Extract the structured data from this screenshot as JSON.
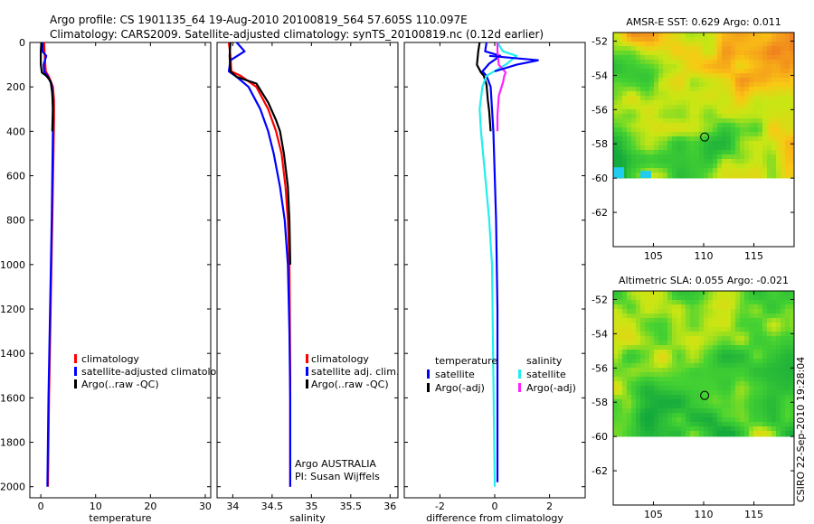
{
  "title": {
    "line1": "Argo profile: CS 1901135_64 19-Aug-2010 20100819_564 57.605S 110.097E",
    "line2": "Climatology: CARS2009. Satellite-adjusted climatology: synTS_20100819.nc (0.12d earlier)"
  },
  "stamp": "CSIRO 22-Sep-2010 19:28:04",
  "colors": {
    "red": "#ff0000",
    "blue": "#0000ff",
    "black": "#000000",
    "cyan": "#22eeee",
    "magenta": "#ff22ff"
  },
  "chart_data": [
    {
      "id": "temperature",
      "type": "line",
      "xlabel": "temperature",
      "xlim": [
        -2,
        31
      ],
      "xticks": [
        0,
        10,
        20,
        30
      ],
      "ylim": [
        0,
        2050
      ],
      "yticks": [
        0,
        200,
        400,
        600,
        800,
        1000,
        1200,
        1400,
        1600,
        1800,
        2000
      ],
      "legend": [
        "climatology",
        "satellite-adjusted climatology",
        "Argo(..raw -QC)"
      ],
      "series": [
        {
          "name": "climatology",
          "color": "red",
          "points": [
            [
              0.6,
              0
            ],
            [
              0.7,
              60
            ],
            [
              0.9,
              130
            ],
            [
              1.5,
              155
            ],
            [
              2.2,
              200
            ],
            [
              2.4,
              260
            ],
            [
              2.4,
              350
            ],
            [
              2.3,
              500
            ],
            [
              2.1,
              800
            ],
            [
              1.8,
              1200
            ],
            [
              1.5,
              1600
            ],
            [
              1.3,
              2000
            ]
          ]
        },
        {
          "name": "satellite-adjusted climatology",
          "color": "blue",
          "points": [
            [
              0.3,
              0
            ],
            [
              0.3,
              40
            ],
            [
              1.0,
              60
            ],
            [
              0.5,
              100
            ],
            [
              0.6,
              130
            ],
            [
              1.2,
              150
            ],
            [
              2.0,
              190
            ],
            [
              2.2,
              260
            ],
            [
              2.2,
              400
            ],
            [
              2.0,
              800
            ],
            [
              1.7,
              1200
            ],
            [
              1.4,
              1600
            ],
            [
              1.2,
              2000
            ]
          ]
        },
        {
          "name": "Argo(..raw -QC)",
          "color": "black",
          "points": [
            [
              0.1,
              0
            ],
            [
              0.0,
              40
            ],
            [
              0.0,
              100
            ],
            [
              0.2,
              135
            ],
            [
              1.0,
              150
            ],
            [
              1.8,
              175
            ],
            [
              2.1,
              230
            ],
            [
              2.2,
              300
            ],
            [
              2.1,
              400
            ]
          ]
        }
      ]
    },
    {
      "id": "salinity",
      "type": "line",
      "xlabel": "salinity",
      "xlim": [
        33.8,
        36.1
      ],
      "xticks": [
        34,
        34.5,
        35,
        35.5,
        36
      ],
      "ylim": [
        0,
        2050
      ],
      "legend": [
        "climatology",
        "satellite adj. clim.",
        "Argo(..raw -QC)"
      ],
      "annotations": [
        "Argo AUSTRALIA",
        "PI: Susan Wijffels"
      ],
      "series": [
        {
          "name": "climatology",
          "color": "red",
          "points": [
            [
              33.95,
              0
            ],
            [
              33.97,
              60
            ],
            [
              33.98,
              130
            ],
            [
              34.1,
              150
            ],
            [
              34.3,
              200
            ],
            [
              34.45,
              300
            ],
            [
              34.55,
              400
            ],
            [
              34.62,
              500
            ],
            [
              34.67,
              650
            ],
            [
              34.7,
              800
            ],
            [
              34.72,
              1000
            ],
            [
              34.73,
              1500
            ],
            [
              34.73,
              2000
            ]
          ]
        },
        {
          "name": "satellite adj. clim.",
          "color": "blue",
          "points": [
            [
              34.05,
              0
            ],
            [
              34.15,
              40
            ],
            [
              33.97,
              80
            ],
            [
              33.95,
              130
            ],
            [
              34.05,
              155
            ],
            [
              34.2,
              200
            ],
            [
              34.35,
              300
            ],
            [
              34.45,
              400
            ],
            [
              34.52,
              500
            ],
            [
              34.6,
              650
            ],
            [
              34.66,
              800
            ],
            [
              34.7,
              1000
            ],
            [
              34.72,
              1300
            ],
            [
              34.73,
              1600
            ],
            [
              34.73,
              2000
            ]
          ]
        },
        {
          "name": "Argo(..raw -QC)",
          "color": "black",
          "points": [
            [
              33.97,
              0
            ],
            [
              33.96,
              60
            ],
            [
              33.97,
              130
            ],
            [
              34.05,
              155
            ],
            [
              34.3,
              185
            ],
            [
              34.45,
              270
            ],
            [
              34.55,
              350
            ],
            [
              34.6,
              400
            ],
            [
              34.65,
              500
            ],
            [
              34.7,
              650
            ],
            [
              34.72,
              800
            ],
            [
              34.73,
              1000
            ]
          ]
        }
      ]
    },
    {
      "id": "difference",
      "type": "line",
      "xlabel": "difference from climatology",
      "xlim": [
        -3.3,
        3.3
      ],
      "xticks": [
        -2,
        0,
        2
      ],
      "ylim": [
        0,
        2050
      ],
      "legend_groups": [
        {
          "title": "temperature",
          "items": [
            "satellite",
            "Argo(-adj)"
          ]
        },
        {
          "title": "salinity",
          "items": [
            "satellite",
            "Argo(-adj)"
          ]
        }
      ],
      "series": [
        {
          "name": "temperature satellite",
          "color": "blue",
          "points": [
            [
              -0.3,
              0
            ],
            [
              -0.35,
              40
            ],
            [
              0.2,
              60
            ],
            [
              -0.2,
              95
            ],
            [
              -0.45,
              130
            ],
            [
              -0.3,
              150
            ],
            [
              -0.15,
              200
            ],
            [
              -0.1,
              300
            ],
            [
              -0.05,
              400
            ],
            [
              0.05,
              800
            ],
            [
              0.1,
              1200
            ],
            [
              0.1,
              1600
            ],
            [
              0.1,
              1980
            ]
          ]
        },
        {
          "name": "temperature Argo(-adj)",
          "color": "black",
          "points": [
            [
              -0.55,
              0
            ],
            [
              -0.6,
              40
            ],
            [
              -0.65,
              100
            ],
            [
              -0.5,
              135
            ],
            [
              -0.4,
              150
            ],
            [
              -0.3,
              190
            ],
            [
              -0.25,
              260
            ],
            [
              -0.2,
              310
            ],
            [
              -0.15,
              400
            ]
          ]
        },
        {
          "name": "salinity satellite",
          "color": "cyan",
          "points": [
            [
              0.1,
              0
            ],
            [
              0.3,
              40
            ],
            [
              0.8,
              60
            ],
            [
              0.4,
              100
            ],
            [
              -0.3,
              150
            ],
            [
              -0.45,
              200
            ],
            [
              -0.55,
              300
            ],
            [
              -0.5,
              400
            ],
            [
              -0.35,
              600
            ],
            [
              -0.2,
              800
            ],
            [
              -0.1,
              1000
            ],
            [
              -0.05,
              1500
            ],
            [
              0.0,
              2000
            ]
          ]
        },
        {
          "name": "salinity Argo(-adj)",
          "color": "magenta",
          "points": [
            [
              0.1,
              0
            ],
            [
              0.1,
              40
            ],
            [
              0.15,
              100
            ],
            [
              0.4,
              135
            ],
            [
              0.35,
              150
            ],
            [
              0.3,
              180
            ],
            [
              0.15,
              240
            ],
            [
              0.1,
              330
            ],
            [
              0.1,
              400
            ]
          ]
        }
      ],
      "extra_blue_spike": [
        [
          -0.2,
          60
        ],
        [
          1.6,
          80
        ],
        [
          0.8,
          100
        ],
        [
          0.0,
          130
        ]
      ]
    },
    {
      "id": "amsr-sst",
      "type": "heatmap",
      "title": "AMSR-E SST: 0.629 Argo: 0.011",
      "xlim": [
        101,
        119
      ],
      "ylim": [
        -64,
        -51.5
      ],
      "xticks": [
        105,
        110,
        115
      ],
      "yticks": [
        -52,
        -54,
        -56,
        -58,
        -60,
        -62
      ],
      "data_bottom_lat": -60,
      "marker": [
        110.1,
        -57.6
      ]
    },
    {
      "id": "altimetric-sla",
      "type": "heatmap",
      "title": "Altimetric SLA: 0.055 Argo: -0.021",
      "xlim": [
        101,
        119
      ],
      "ylim": [
        -64,
        -51.5
      ],
      "xticks": [
        105,
        110,
        115
      ],
      "yticks": [
        -52,
        -54,
        -56,
        -58,
        -60,
        -62
      ],
      "data_bottom_lat": -60,
      "marker": [
        110.1,
        -57.6
      ]
    }
  ]
}
